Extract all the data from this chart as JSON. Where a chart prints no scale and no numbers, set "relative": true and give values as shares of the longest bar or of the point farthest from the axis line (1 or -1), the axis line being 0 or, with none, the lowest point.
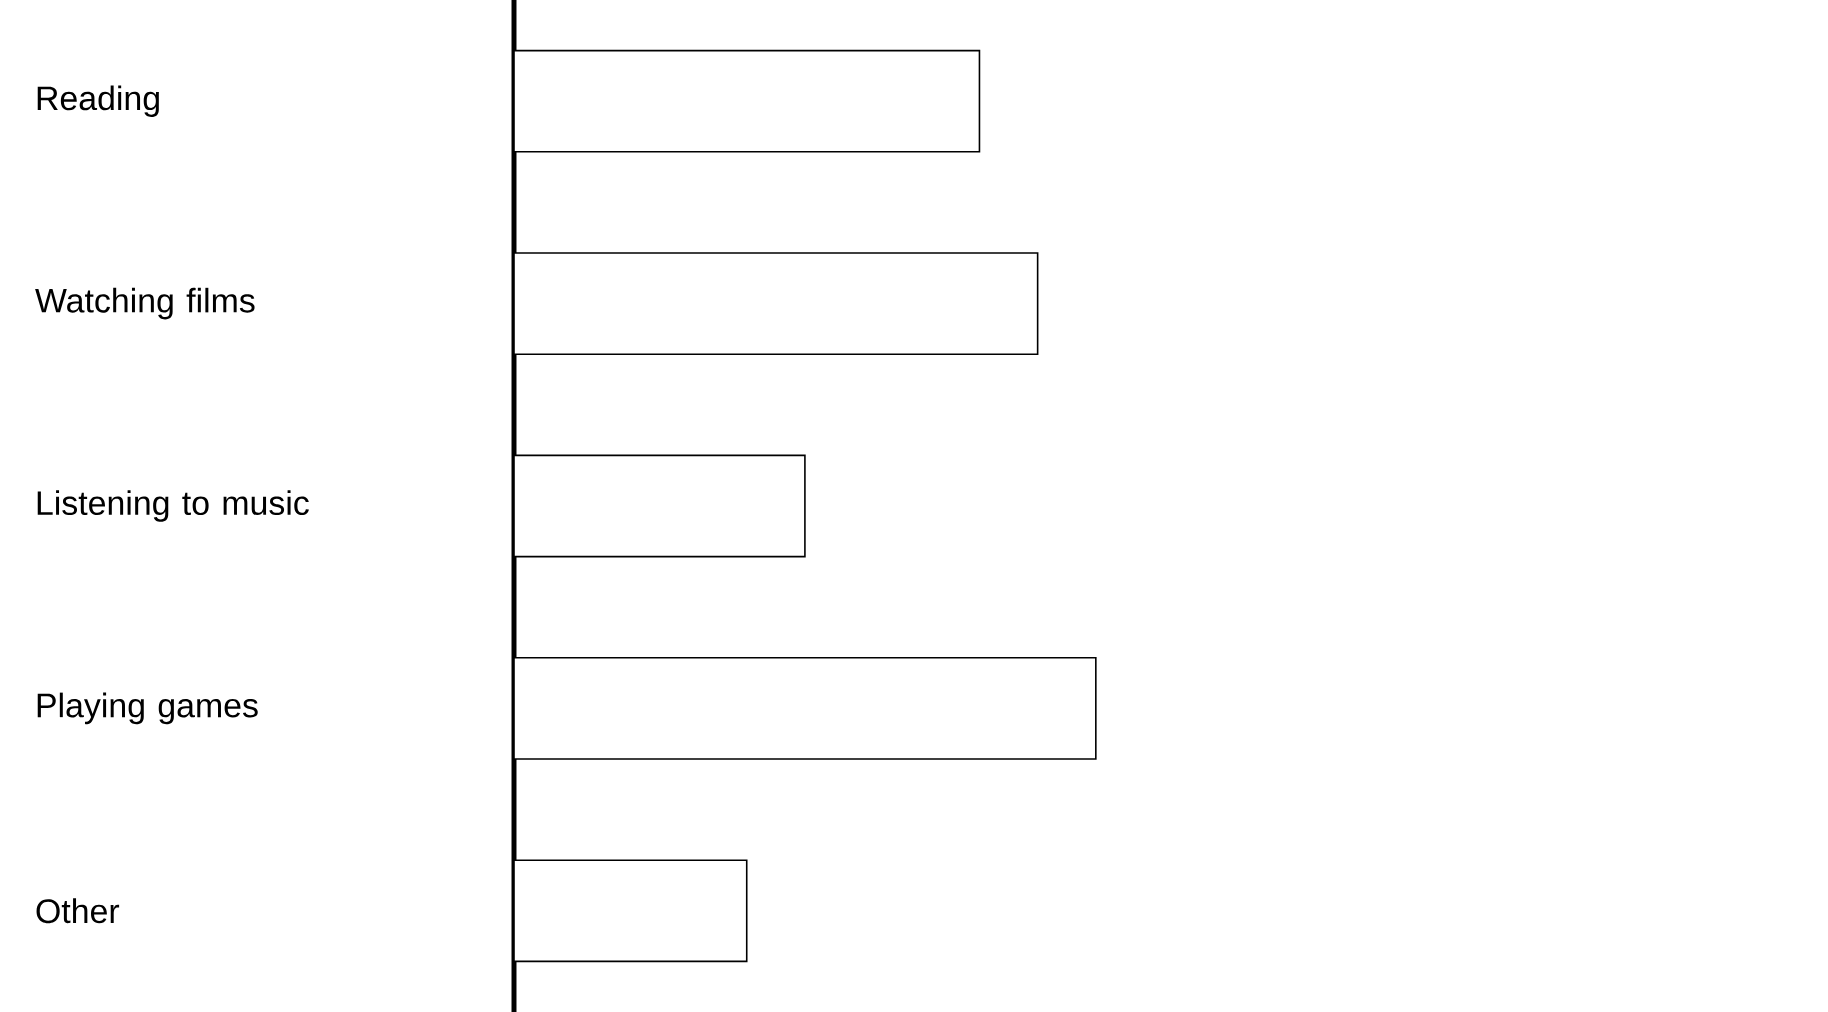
{
  "chart_data": {
    "type": "bar",
    "orientation": "horizontal",
    "relative": true,
    "categories": [
      "Reading",
      "Watching films",
      "Listening to music",
      "Playing games",
      "Other"
    ],
    "values": [
      0.8,
      0.9,
      0.5,
      1,
      0.4
    ],
    "color": "#ffffff"
  }
}
